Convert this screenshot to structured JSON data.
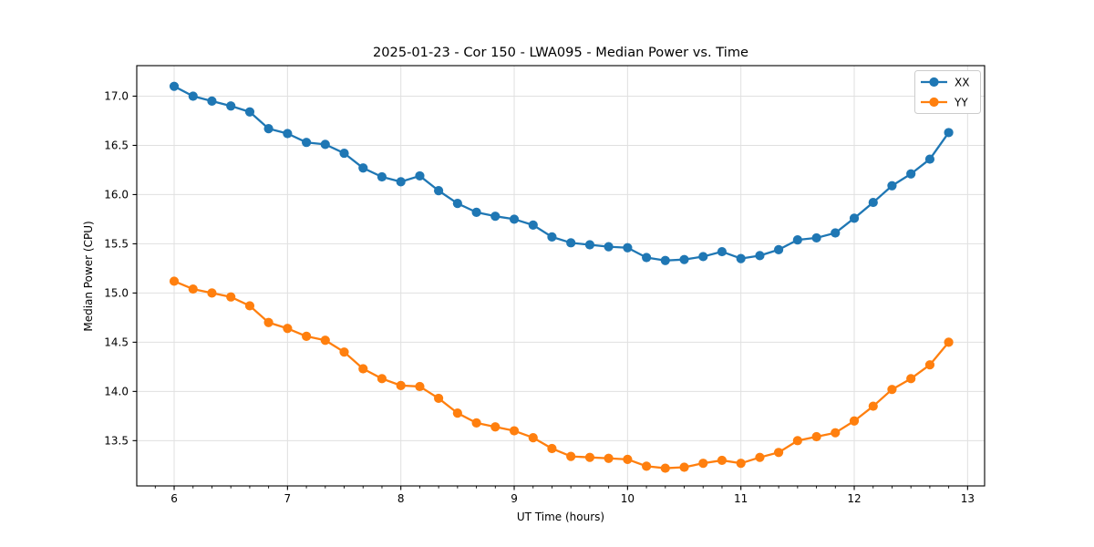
{
  "page": {
    "background": "#ffffff"
  },
  "chart_data": {
    "type": "line",
    "title": "2025-01-23 - Cor 150 - LWA095 - Median Power vs. Time",
    "xlabel": "UT Time (hours)",
    "ylabel": "Median Power (CPU)",
    "xlim": [
      5.67,
      13.15
    ],
    "ylim": [
      13.04,
      17.31
    ],
    "xticks": [
      6,
      7,
      8,
      9,
      10,
      11,
      12,
      13
    ],
    "ytick_values": [
      13.5,
      14.0,
      14.5,
      15.0,
      15.5,
      16.0,
      16.5,
      17.0
    ],
    "ytick_labels": [
      "13.5",
      "14.0",
      "14.5",
      "15.0",
      "15.5",
      "16.0",
      "16.5",
      "17.0"
    ],
    "x_minor_step": 0.1666667,
    "grid": true,
    "grid_color": "#e0e0e0",
    "legend_position": "upper right",
    "legend_labels": [
      "XX",
      "YY"
    ],
    "x": [
      6.0,
      6.167,
      6.333,
      6.5,
      6.667,
      6.833,
      7.0,
      7.167,
      7.333,
      7.5,
      7.667,
      7.833,
      8.0,
      8.167,
      8.333,
      8.5,
      8.667,
      8.833,
      9.0,
      9.167,
      9.333,
      9.5,
      9.667,
      9.833,
      10.0,
      10.167,
      10.333,
      10.5,
      10.667,
      10.833,
      11.0,
      11.167,
      11.333,
      11.5,
      11.667,
      11.833,
      12.0,
      12.167,
      12.333,
      12.5,
      12.667,
      12.833
    ],
    "series": [
      {
        "name": "XX",
        "color": "#1f77b4",
        "marker": "circle",
        "values": [
          17.1,
          17.0,
          16.95,
          16.9,
          16.84,
          16.67,
          16.62,
          16.53,
          16.51,
          16.42,
          16.27,
          16.18,
          16.13,
          16.19,
          16.04,
          15.91,
          15.82,
          15.78,
          15.75,
          15.69,
          15.57,
          15.51,
          15.49,
          15.47,
          15.46,
          15.36,
          15.33,
          15.34,
          15.37,
          15.42,
          15.35,
          15.38,
          15.44,
          15.54,
          15.56,
          15.61,
          15.76,
          15.92,
          16.09,
          16.21,
          16.36,
          16.63
        ]
      },
      {
        "name": "YY",
        "color": "#ff7f0e",
        "marker": "circle",
        "values": [
          15.12,
          15.04,
          15.0,
          14.96,
          14.87,
          14.7,
          14.64,
          14.56,
          14.52,
          14.4,
          14.23,
          14.13,
          14.06,
          14.05,
          13.93,
          13.78,
          13.68,
          13.64,
          13.6,
          13.53,
          13.42,
          13.34,
          13.33,
          13.32,
          13.31,
          13.24,
          13.22,
          13.23,
          13.27,
          13.3,
          13.27,
          13.33,
          13.38,
          13.5,
          13.54,
          13.58,
          13.7,
          13.85,
          14.02,
          14.13,
          14.27,
          14.5
        ]
      }
    ]
  }
}
